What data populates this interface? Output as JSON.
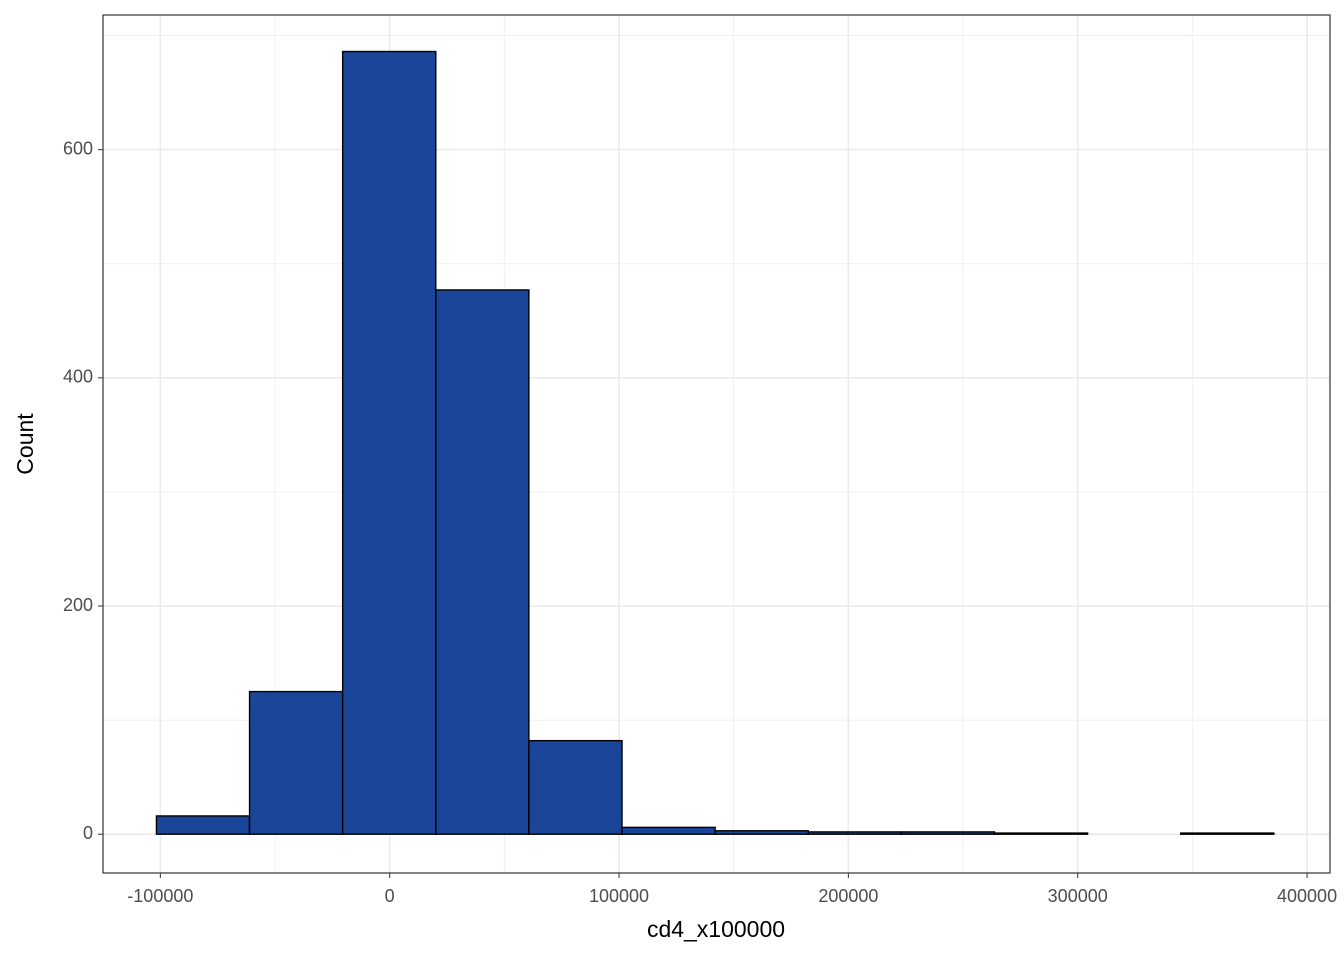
{
  "chart_data": {
    "type": "histogram",
    "x_label": "cd4_x100000",
    "y_label": "Count",
    "bins": [
      -101700,
      -61100,
      -20500,
      20100,
      60700,
      101300,
      141900,
      182500,
      223100,
      263700,
      304300,
      344900,
      385500
    ],
    "values": [
      16,
      125,
      686,
      477,
      82,
      6,
      3,
      2,
      2,
      1,
      0,
      1
    ],
    "color": "#1a4599",
    "edge_color": "#000000",
    "xlim": [
      -125000,
      410000
    ],
    "xticks": [
      -100000,
      0,
      100000,
      200000,
      300000,
      400000
    ],
    "xminor_grid": [
      -50000,
      50000,
      150000,
      250000,
      350000
    ],
    "ylim": [
      -34,
      718
    ],
    "yticks": [
      0,
      200,
      400,
      600
    ],
    "yminor_grid": [
      100,
      300,
      500,
      700
    ],
    "grid": true
  }
}
